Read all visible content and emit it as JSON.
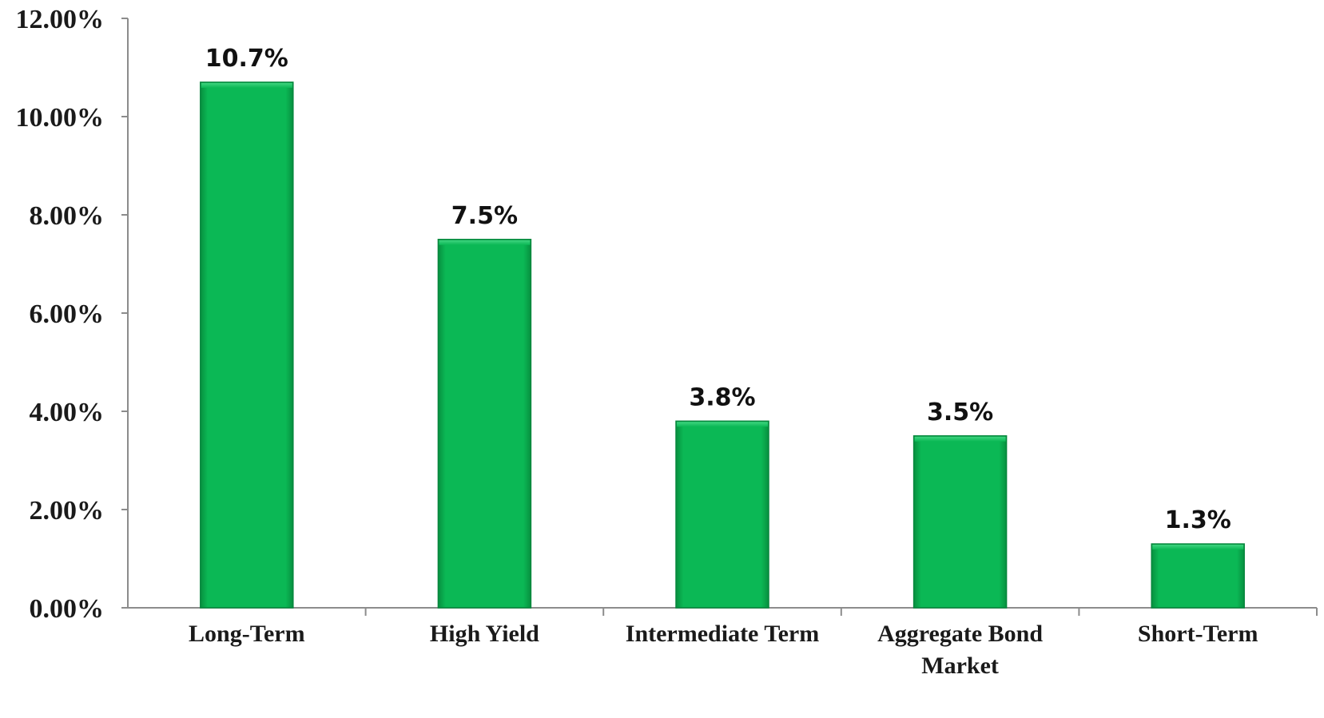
{
  "chart_data": {
    "type": "bar",
    "title": "",
    "xlabel": "",
    "ylabel": "",
    "categories": [
      [
        "Long-Term"
      ],
      [
        "High Yield"
      ],
      [
        "Intermediate Term"
      ],
      [
        "Aggregate Bond",
        "Market"
      ],
      [
        "Short-Term"
      ]
    ],
    "values": [
      10.7,
      7.5,
      3.8,
      3.5,
      1.3
    ],
    "data_labels": [
      "10.7%",
      "7.5%",
      "3.8%",
      "3.5%",
      "1.3%"
    ],
    "ylim": [
      0,
      12
    ],
    "yticks": [
      0,
      2,
      4,
      6,
      8,
      10,
      12
    ],
    "ytick_labels": [
      "0.00%",
      "2.00%",
      "4.00%",
      "6.00%",
      "8.00%",
      "10.00%",
      "12.00%"
    ],
    "grid": false,
    "legend": "none",
    "colors": {
      "bar": "#0bb855",
      "bar_edge": "#07873d",
      "axis": "#8c8c8c"
    }
  }
}
